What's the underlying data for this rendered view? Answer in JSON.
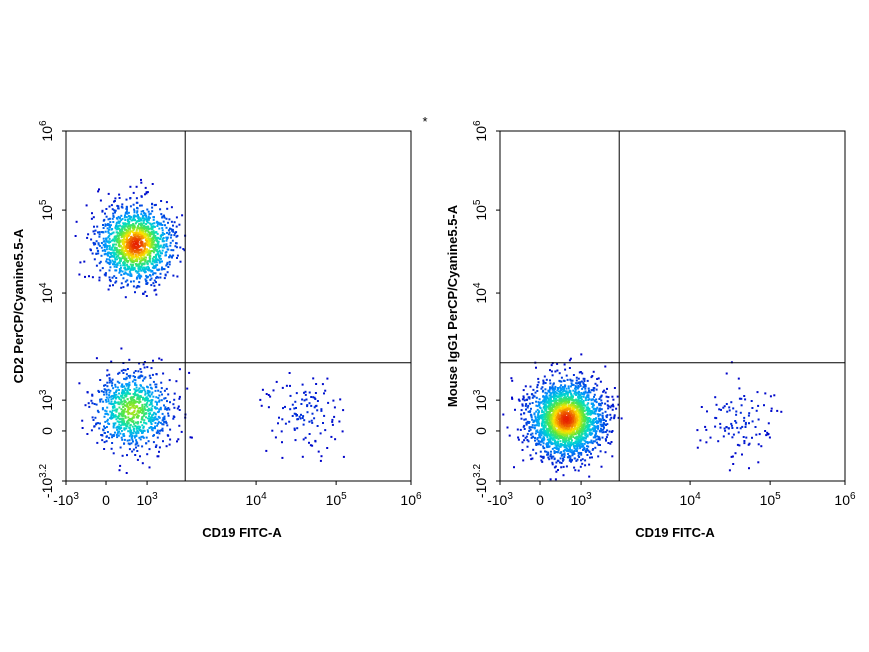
{
  "figure": {
    "marker": "*"
  },
  "chart_data": [
    {
      "type": "scatter",
      "panel": "left",
      "xlabel": "CD19 FITC-A",
      "ylabel": "CD2 PerCP/Cyanine5.5-A",
      "x_scale": "biexponential",
      "y_scale": "biexponential",
      "x_ticks": [
        {
          "base": "-10",
          "exp": "3"
        },
        {
          "base": "0",
          "exp": ""
        },
        {
          "base": "10",
          "exp": "3"
        },
        {
          "base": "10",
          "exp": "4"
        },
        {
          "base": "10",
          "exp": "5"
        },
        {
          "base": "10",
          "exp": "6"
        }
      ],
      "y_ticks": [
        {
          "base": "-10",
          "exp": "3.2"
        },
        {
          "base": "0",
          "exp": ""
        },
        {
          "base": "10",
          "exp": "3"
        },
        {
          "base": "10",
          "exp": "4"
        },
        {
          "base": "10",
          "exp": "5"
        },
        {
          "base": "10",
          "exp": "6"
        }
      ],
      "gate": {
        "x": 2500,
        "y": 2500
      },
      "colormap": "density (blue-cyan-green-yellow-red)",
      "populations": [
        {
          "name": "",
          "x_center": 600,
          "y_center": 40000,
          "events": 1500
        },
        {
          "name": "",
          "x_center": 500,
          "y_center": 600,
          "events": 900
        },
        {
          "name": "",
          "x_center": 40000,
          "y_center": 500,
          "events": 120
        }
      ]
    },
    {
      "type": "scatter",
      "panel": "right",
      "xlabel": "CD19 FITC-A",
      "ylabel": "Mouse IgG1 PerCP/Cyanine5.5-A",
      "x_scale": "biexponential",
      "y_scale": "biexponential",
      "x_ticks": [
        {
          "base": "-10",
          "exp": "3"
        },
        {
          "base": "0",
          "exp": ""
        },
        {
          "base": "10",
          "exp": "3"
        },
        {
          "base": "10",
          "exp": "4"
        },
        {
          "base": "10",
          "exp": "5"
        },
        {
          "base": "10",
          "exp": "6"
        }
      ],
      "y_ticks": [
        {
          "base": "-10",
          "exp": "3.2"
        },
        {
          "base": "0",
          "exp": ""
        },
        {
          "base": "10",
          "exp": "3"
        },
        {
          "base": "10",
          "exp": "4"
        },
        {
          "base": "10",
          "exp": "5"
        },
        {
          "base": "10",
          "exp": "6"
        }
      ],
      "gate": {
        "x": 2500,
        "y": 2500
      },
      "colormap": "density (blue-cyan-green-yellow-red)",
      "populations": [
        {
          "name": "",
          "x_center": 500,
          "y_center": 300,
          "events": 2400
        },
        {
          "name": "",
          "x_center": 40000,
          "y_center": 300,
          "events": 110
        }
      ]
    }
  ]
}
